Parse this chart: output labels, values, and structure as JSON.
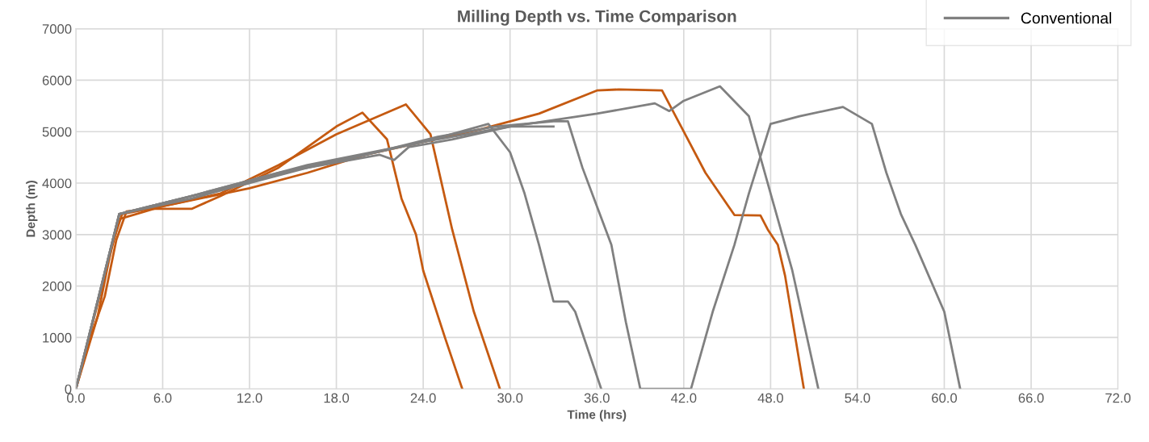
{
  "chart_data": {
    "type": "line",
    "title": "Milling Depth vs. Time Comparison",
    "xlabel": "Time (hrs)",
    "ylabel": "Depth (m)",
    "xlim": [
      0,
      72
    ],
    "ylim": [
      0,
      7000
    ],
    "xticks": [
      {
        "value": 0,
        "label": "0.0"
      },
      {
        "value": 6,
        "label": "6.0"
      },
      {
        "value": 12,
        "label": "12.0"
      },
      {
        "value": 18,
        "label": "18.0"
      },
      {
        "value": 24,
        "label": "24.0"
      },
      {
        "value": 30,
        "label": "30.0"
      },
      {
        "value": 36,
        "label": "36.0"
      },
      {
        "value": 42,
        "label": "42.0"
      },
      {
        "value": 48,
        "label": "48.0"
      },
      {
        "value": 54,
        "label": "54.0"
      },
      {
        "value": 60,
        "label": "60.0"
      },
      {
        "value": 66,
        "label": "66.0"
      },
      {
        "value": 72,
        "label": "72.0"
      }
    ],
    "yticks": [
      0,
      1000,
      2000,
      3000,
      4000,
      5000,
      6000,
      7000
    ],
    "grid": true,
    "legend": "top right",
    "marker": "none",
    "line_style": "solid",
    "series": [
      {
        "color": "#c55a11",
        "x": [
          0,
          1,
          2,
          2.8,
          3.5,
          5,
          8,
          10,
          14,
          18,
          19.8,
          21.5,
          22.5,
          23.5,
          24,
          25.5,
          26.7
        ],
        "values": [
          0,
          1000,
          1800,
          2900,
          3450,
          3500,
          3500,
          3750,
          4300,
          5100,
          5370,
          4850,
          3700,
          3000,
          2300,
          1000,
          0
        ]
      },
      {
        "color": "#c55a11",
        "x": [
          0,
          1.5,
          2.5,
          3.2,
          6,
          10,
          14,
          18,
          22.8,
          24.5,
          26,
          27.5,
          29.3
        ],
        "values": [
          0,
          1400,
          2800,
          3400,
          3550,
          3800,
          4350,
          4950,
          5530,
          4950,
          3100,
          1500,
          0
        ]
      },
      {
        "color": "#c55a11",
        "x": [
          0,
          3,
          6,
          12,
          16,
          20,
          24,
          28,
          32,
          36,
          37.5,
          40.5,
          42,
          43.5,
          45.5,
          47.3,
          47.8,
          48.5,
          49,
          50.3
        ],
        "values": [
          0,
          3300,
          3550,
          3900,
          4200,
          4550,
          4800,
          5050,
          5350,
          5800,
          5820,
          5800,
          5000,
          4200,
          3380,
          3370,
          3100,
          2800,
          2200,
          0
        ]
      },
      {
        "name": "Conventional",
        "color": "#808080",
        "x": [
          0,
          3,
          8,
          12,
          16,
          20,
          24,
          28.5,
          30,
          31,
          32,
          33,
          34,
          34.5,
          36.3
        ],
        "values": [
          0,
          3400,
          3750,
          4000,
          4300,
          4550,
          4800,
          5150,
          4600,
          3800,
          2800,
          1700,
          1700,
          1500,
          0
        ]
      },
      {
        "color": "#808080",
        "x": [
          0,
          3,
          8,
          14,
          20,
          25,
          29,
          33,
          34,
          35,
          37,
          38,
          39,
          42.5,
          44,
          45.5,
          46.5,
          48,
          50,
          53,
          55,
          56,
          57,
          58,
          60,
          61.1
        ],
        "values": [
          0,
          3400,
          3750,
          4200,
          4550,
          4900,
          5100,
          5200,
          5200,
          4300,
          2800,
          1300,
          0,
          0,
          1500,
          2800,
          3800,
          5150,
          5300,
          5480,
          5150,
          4200,
          3400,
          2800,
          1500,
          0
        ]
      },
      {
        "color": "#808080",
        "x": [
          0,
          3,
          8,
          16,
          24,
          30,
          36,
          40,
          41,
          42,
          44.5,
          46.5,
          48,
          49.5,
          51.3
        ],
        "values": [
          0,
          3400,
          3750,
          4350,
          4800,
          5100,
          5350,
          5550,
          5400,
          5600,
          5880,
          5300,
          3800,
          2300,
          0
        ]
      },
      {
        "color": "#808080",
        "x": [
          0,
          3,
          8,
          15,
          21,
          22,
          23,
          26,
          30,
          33
        ],
        "values": [
          0,
          3400,
          3700,
          4250,
          4550,
          4450,
          4700,
          4850,
          5100,
          5100
        ]
      }
    ]
  }
}
